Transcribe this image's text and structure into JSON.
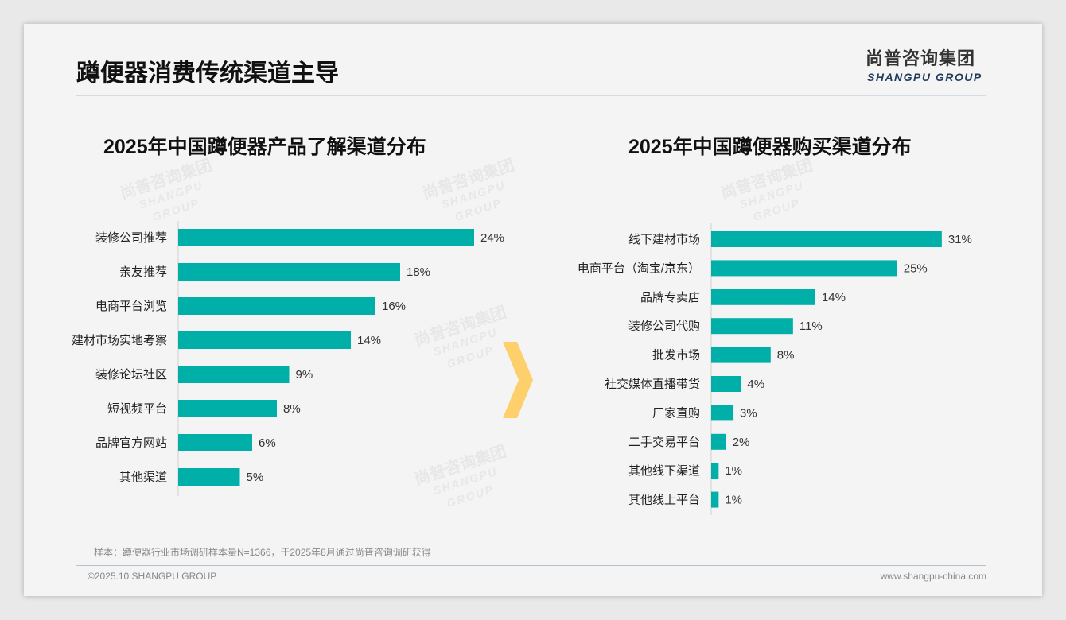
{
  "page": {
    "title": "蹲便器消费传统渠道主导",
    "logo_cn": "尚普咨询集团",
    "logo_en": "SHANGPU GROUP",
    "watermark_cn": "尚普咨询集团",
    "watermark_en": "SHANGPU GROUP",
    "note": "样本：蹲便器行业市场调研样本量N=1366，于2025年8月通过尚普咨询调研获得",
    "copyright": "©2025.10 SHANGPU GROUP",
    "url": "www.shangpu-china.com",
    "accent": "#00b0a8",
    "arrow": "#fdd06c"
  },
  "chart_data": [
    {
      "type": "bar",
      "orientation": "horizontal",
      "title": "2025年中国蹲便器产品了解渠道分布",
      "categories": [
        "装修公司推荐",
        "亲友推荐",
        "电商平台浏览",
        "建材市场实地考察",
        "装修论坛社区",
        "短视频平台",
        "品牌官方网站",
        "其他渠道"
      ],
      "values": [
        24,
        18,
        16,
        14,
        9,
        8,
        6,
        5
      ],
      "unit": "%",
      "labels": [
        "24%",
        "18%",
        "16%",
        "14%",
        "9%",
        "8%",
        "6%",
        "5%"
      ],
      "grid": false
    },
    {
      "type": "bar",
      "orientation": "horizontal",
      "title": "2025年中国蹲便器购买渠道分布",
      "categories": [
        "线下建材市场",
        "电商平台（淘宝/京东）",
        "品牌专卖店",
        "装修公司代购",
        "批发市场",
        "社交媒体直播带货",
        "厂家直购",
        "二手交易平台",
        "其他线下渠道",
        "其他线上平台"
      ],
      "values": [
        31,
        25,
        14,
        11,
        8,
        4,
        3,
        2,
        1,
        1
      ],
      "unit": "%",
      "labels": [
        "31%",
        "25%",
        "14%",
        "11%",
        "8%",
        "4%",
        "3%",
        "2%",
        "1%",
        "1%"
      ],
      "grid": false
    }
  ]
}
